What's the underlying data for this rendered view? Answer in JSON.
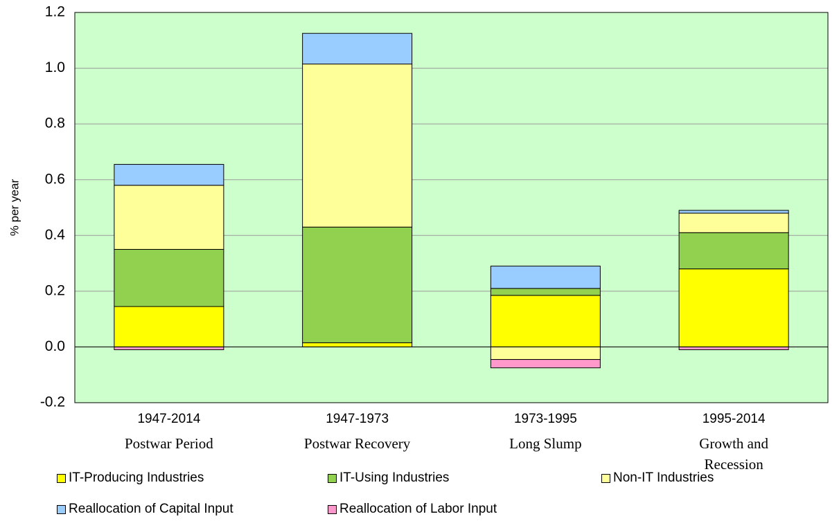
{
  "chart_data": {
    "type": "stacked_bar",
    "y_label": "% per year",
    "categories": [
      "1947-2014",
      "1947-1973",
      "1973-1995",
      "1995-2014"
    ],
    "category_names": [
      "Postwar Period",
      "Postwar Recovery",
      "Long Slump",
      "Growth and Recession"
    ],
    "series": [
      {
        "name": "IT-Producing Industries",
        "color": "#ffff00",
        "values": [
          0.145,
          0.015,
          0.185,
          0.28
        ]
      },
      {
        "name": "IT-Using Industries",
        "color": "#92d050",
        "values": [
          0.205,
          0.415,
          0.025,
          0.13
        ]
      },
      {
        "name": "Non-IT Industries",
        "color": "#ffff99",
        "values": [
          0.23,
          0.585,
          -0.045,
          0.07
        ]
      },
      {
        "name": "Reallocation of Capital Input",
        "color": "#99ccff",
        "values": [
          0.075,
          0.11,
          0.08,
          0.01
        ]
      },
      {
        "name": "Reallocation of Labor Input",
        "color": "#ff99cc",
        "values": [
          -0.01,
          0,
          -0.03,
          -0.01
        ]
      }
    ],
    "ylim": [
      -0.2,
      1.2
    ],
    "yticks": [
      -0.2,
      {
        "value": 0,
        "label": "0.0"
      },
      0.2,
      0.4,
      0.6,
      0.8,
      {
        "value": 1,
        "label": "1.0"
      },
      1.2
    ],
    "grid": true,
    "background": "#ccffcc",
    "legend": "bottom"
  }
}
